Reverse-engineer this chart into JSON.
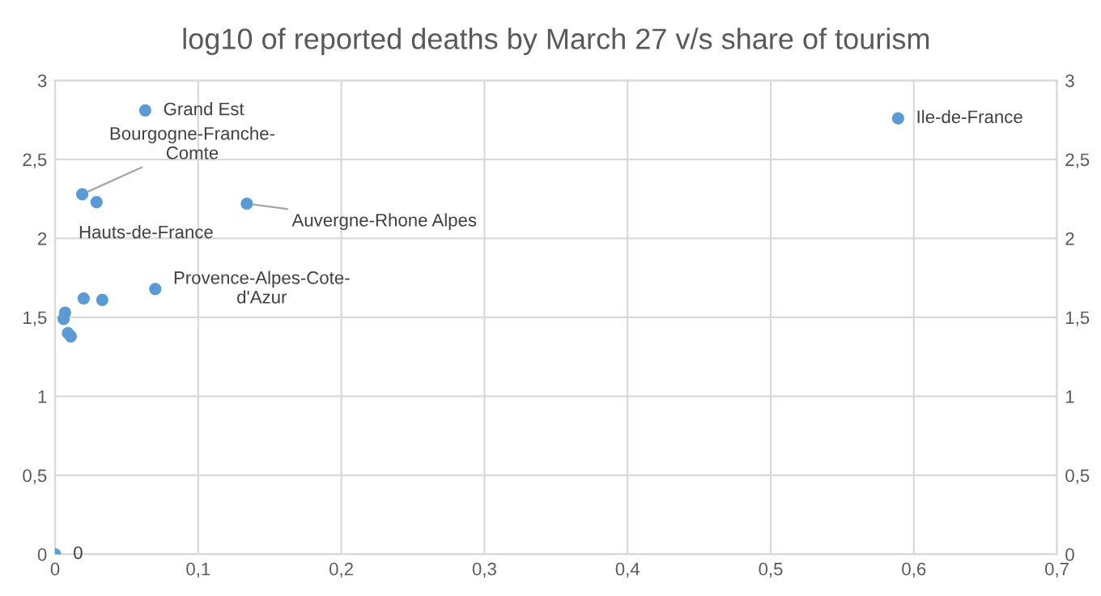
{
  "chart_data": {
    "type": "scatter",
    "title": "log10 of reported deaths by March 27 v/s share of tourism",
    "x": [
      0.063,
      0.589,
      0.019,
      0.029,
      0.134,
      0.07,
      0.02,
      0.033,
      0.007,
      0.006,
      0.009,
      0.011,
      0
    ],
    "series": [
      {
        "color": "#5b9bd5",
        "values": [
          2.81,
          2.76,
          2.28,
          2.23,
          2.22,
          1.68,
          1.62,
          1.61,
          1.53,
          1.49,
          1.4,
          1.38,
          0
        ]
      }
    ],
    "marker": "circle",
    "grid": true,
    "legend": false,
    "xlim": [
      0,
      0.7
    ],
    "xticks": [
      0,
      {
        "value": 0.1,
        "label": "0,1"
      },
      {
        "value": 0.2,
        "label": "0,2"
      },
      {
        "value": 0.3,
        "label": "0,3"
      },
      {
        "value": 0.4,
        "label": "0,4"
      },
      {
        "value": 0.5,
        "label": "0,5"
      },
      {
        "value": 0.6,
        "label": "0,6"
      },
      {
        "value": 0.7,
        "label": "0,7"
      }
    ],
    "ylim": [
      0,
      3
    ],
    "yticks": [
      0,
      {
        "value": 0.5,
        "label": "0,5"
      },
      1,
      {
        "value": 1.5,
        "label": "1,5"
      },
      2,
      {
        "value": 2.5,
        "label": "2,5"
      },
      3
    ],
    "y2lim": [
      0,
      3
    ],
    "y2ticks": [
      0,
      {
        "value": 0.5,
        "label": "0,5"
      },
      1,
      {
        "value": 1.5,
        "label": "1,5"
      },
      2,
      {
        "value": 2.5,
        "label": "2,5"
      },
      3
    ],
    "annotations": [
      {
        "text": "Grand Est",
        "x": 0.063,
        "y": 2.81
      },
      {
        "text": "Ile-de-France",
        "x": 0.589,
        "y": 2.76
      },
      {
        "text": "Bourgogne-Franche-\nComte",
        "x": 0.019,
        "y": 2.28
      },
      {
        "text": "Hauts-de-France",
        "x": 0.029,
        "y": 2.23
      },
      {
        "text": "Auvergne-Rhone Alpes",
        "x": 0.134,
        "y": 2.22
      },
      {
        "text": "Provence-Alpes-Cote-\nd'Azur",
        "x": 0.07,
        "y": 1.68
      },
      {
        "text": "0",
        "x": 0,
        "y": 0
      }
    ]
  }
}
